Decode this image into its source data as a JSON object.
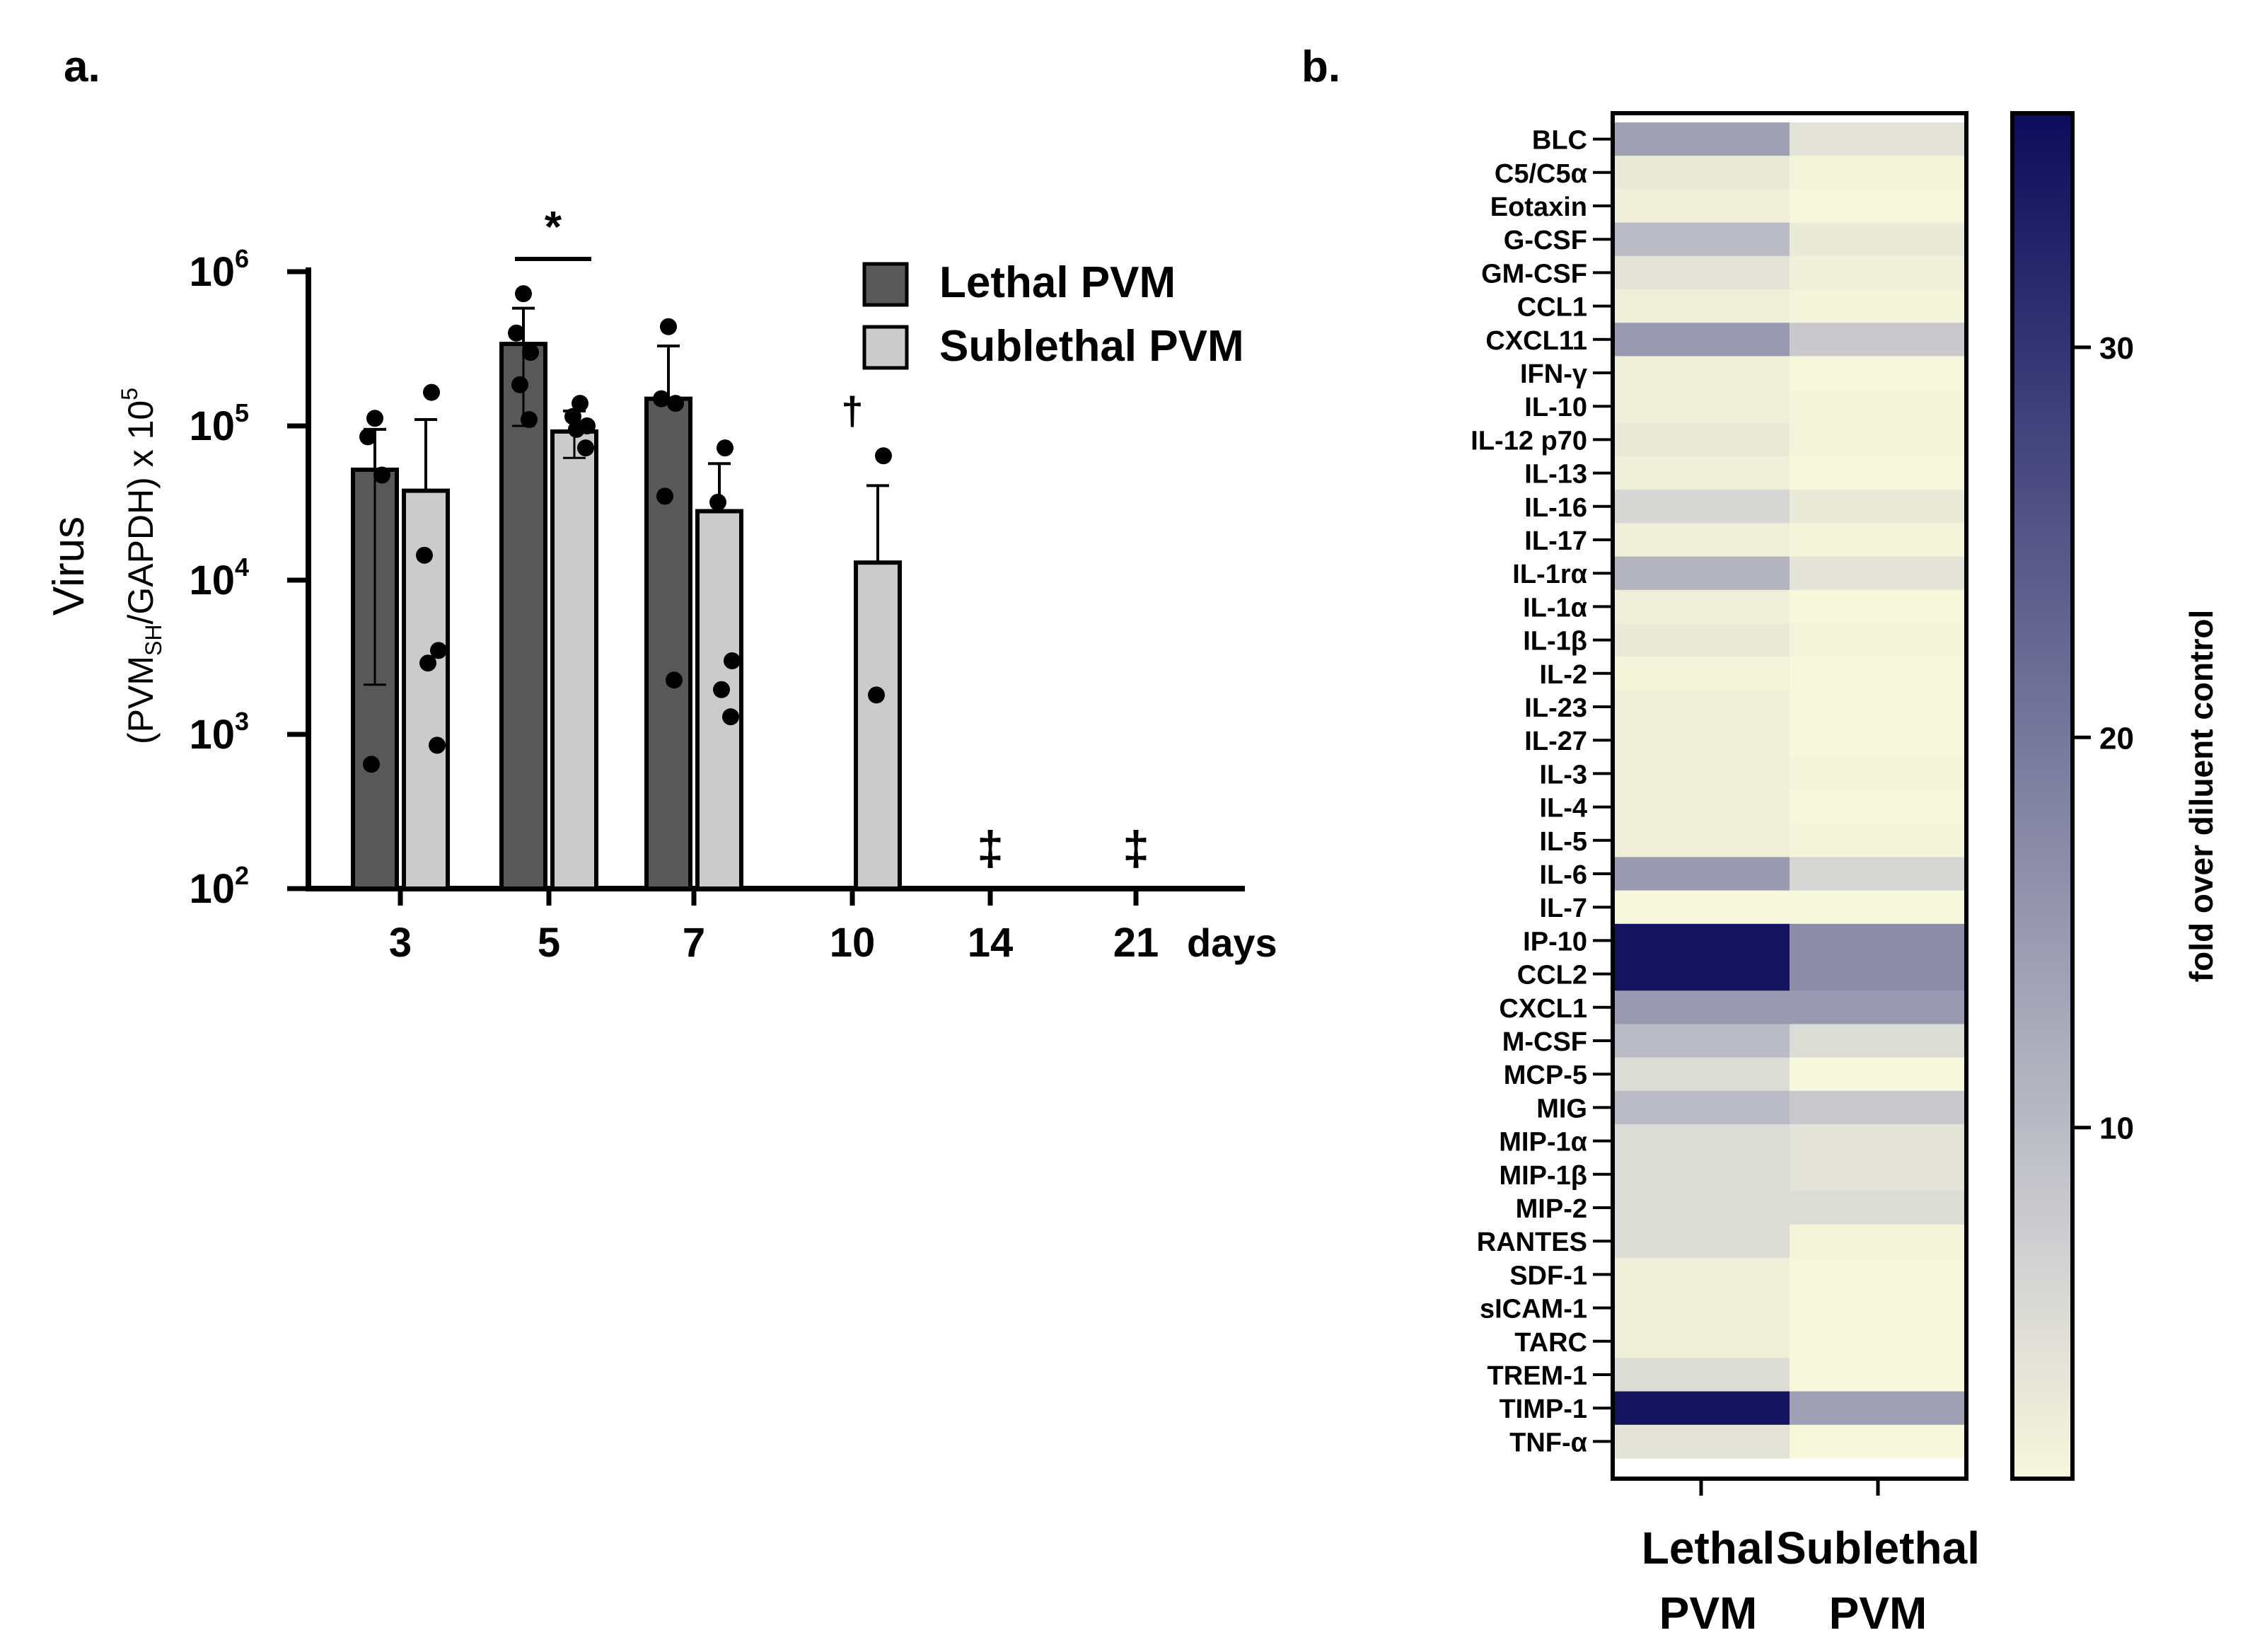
{
  "chart_data": [
    {
      "panel_label": "a.",
      "type": "bar",
      "yscale": "log",
      "ylim": [
        100,
        1000000
      ],
      "ytick_labels": [
        {
          "base": "10",
          "exp": "6",
          "value": 1000000
        },
        {
          "base": "10",
          "exp": "5",
          "value": 100000
        },
        {
          "base": "10",
          "exp": "4",
          "value": 10000
        },
        {
          "base": "10",
          "exp": "3",
          "value": 1000
        },
        {
          "base": "10",
          "exp": "2",
          "value": 100
        }
      ],
      "ylabel": {
        "line1": "Virus",
        "prefix": "(PVM",
        "sub": "SH",
        "middle": "/GAPDH) x 10",
        "sup": "5"
      },
      "xlabel": "days",
      "categories": [
        "3",
        "5",
        "7",
        "10",
        "14",
        "21"
      ],
      "series": [
        {
          "name": "Lethal PVM",
          "color": "#585858",
          "values": [
            52000,
            340000,
            150000,
            null,
            null,
            null
          ],
          "error_upper": [
            95000,
            580000,
            330000,
            null,
            null,
            null
          ],
          "error_lower": [
            2100,
            100000,
            null,
            null,
            null,
            null
          ],
          "points": [
            [
              112000,
              85000,
              48000,
              640
            ],
            [
              720000,
              400000,
              300000,
              185000,
              110000
            ],
            [
              440000,
              150000,
              140000,
              35000,
              2250
            ],
            [],
            [],
            []
          ]
        },
        {
          "name": "Sublethal PVM",
          "color": "#cbcbcb",
          "values": [
            38000,
            92000,
            28000,
            13000,
            null,
            null
          ],
          "error_upper": [
            110000,
            125000,
            57000,
            41000,
            null,
            null
          ],
          "error_lower": [
            null,
            62000,
            null,
            null,
            null,
            null
          ],
          "points": [
            [
              165000,
              14500,
              3500,
              2900,
              850
            ],
            [
              140000,
              115000,
              100000,
              95000,
              72000
            ],
            [
              72000,
              32000,
              3000,
              1950,
              1300
            ],
            [
              64000,
              1800
            ],
            [],
            []
          ]
        }
      ],
      "annotations": [
        {
          "text": "*",
          "category": "5",
          "note": "significance bracket"
        },
        {
          "text": "†",
          "category": "10"
        },
        {
          "text": "‡",
          "category": "14"
        },
        {
          "text": "‡",
          "category": "21"
        }
      ],
      "legend_position": "top-right"
    },
    {
      "panel_label": "b.",
      "type": "heatmap",
      "columns": [
        "Lethal PVM",
        "Sublethal PVM"
      ],
      "column_label_lines": [
        [
          "Lethal",
          "PVM"
        ],
        [
          "Sublethal",
          "PVM"
        ]
      ],
      "rows": [
        "BLC",
        "C5/C5α",
        "Eotaxin",
        "G-CSF",
        "GM-CSF",
        "CCL1",
        "CXCL11",
        "IFN-γ",
        "IL-10",
        "IL-12 p70",
        "IL-13",
        "IL-16",
        "IL-17",
        "IL-1rα",
        "IL-1α",
        "IL-1β",
        "IL-2",
        "IL-23",
        "IL-27",
        "IL-3",
        "IL-4",
        "IL-5",
        "IL-6",
        "IL-7",
        "IP-10",
        "CCL2",
        "CXCL1",
        "M-CSF",
        "MCP-5",
        "MIG",
        "MIP-1α",
        "MIP-1β",
        "MIP-2",
        "RANTES",
        "SDF-1",
        "sICAM-1",
        "TARC",
        "TREM-1",
        "TIMP-1",
        "TNF-α"
      ],
      "values": [
        [
          14,
          4
        ],
        [
          3,
          1.5
        ],
        [
          2,
          1
        ],
        [
          10,
          3
        ],
        [
          4,
          2
        ],
        [
          2,
          1.5
        ],
        [
          15,
          8
        ],
        [
          2,
          1
        ],
        [
          2,
          1.5
        ],
        [
          3,
          1.5
        ],
        [
          2,
          1
        ],
        [
          6,
          3
        ],
        [
          2,
          1.5
        ],
        [
          11,
          4
        ],
        [
          2,
          1
        ],
        [
          3,
          1.5
        ],
        [
          1.5,
          1
        ],
        [
          2,
          1
        ],
        [
          2,
          1
        ],
        [
          2,
          1.5
        ],
        [
          2,
          1
        ],
        [
          2,
          1.5
        ],
        [
          15,
          6
        ],
        [
          1,
          1
        ],
        [
          35,
          17
        ],
        [
          35,
          17
        ],
        [
          15,
          15
        ],
        [
          10,
          5
        ],
        [
          5,
          1
        ],
        [
          10,
          8
        ],
        [
          5,
          4
        ],
        [
          5,
          4
        ],
        [
          5,
          5
        ],
        [
          5,
          1.5
        ],
        [
          2,
          1
        ],
        [
          2,
          1
        ],
        [
          2,
          1
        ],
        [
          5,
          1
        ],
        [
          35,
          14
        ],
        [
          4,
          1
        ]
      ],
      "colorbar": {
        "label": "fold over diluent control",
        "range": [
          1,
          36
        ],
        "ticks": [
          10,
          20,
          30
        ],
        "color_low": "#f7f7dc",
        "color_mid": "#d4d4d4",
        "color_high": "#0c0c5c"
      }
    }
  ]
}
